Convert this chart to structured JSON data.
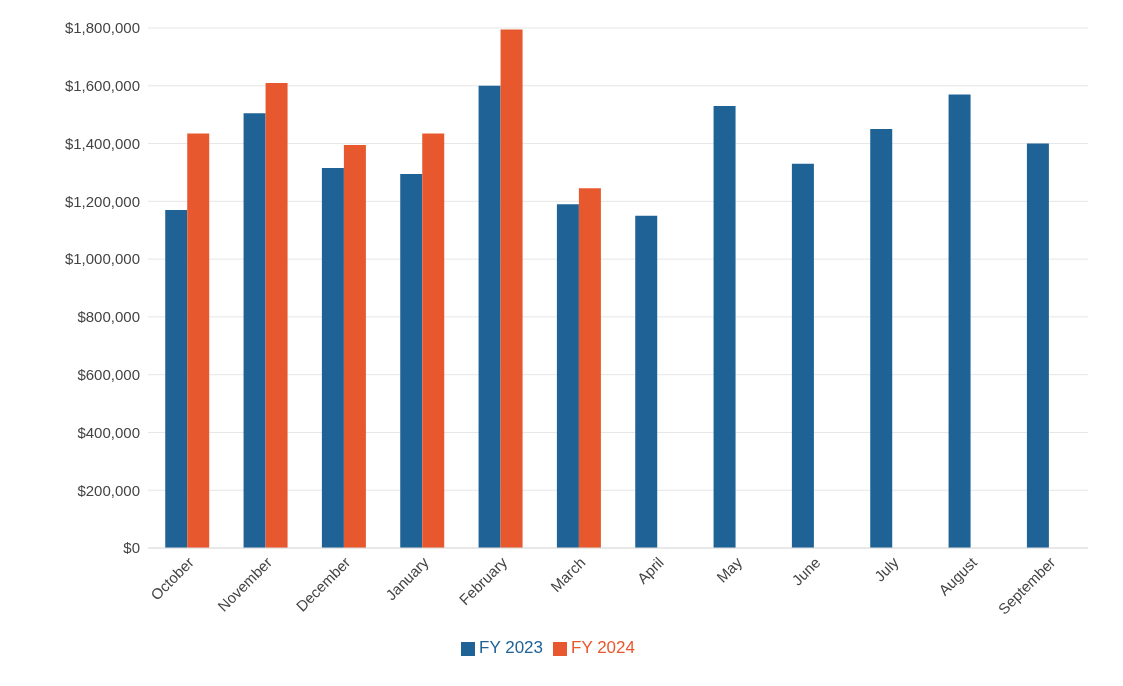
{
  "chart_data": {
    "type": "bar",
    "categories": [
      "October",
      "November",
      "December",
      "January",
      "February",
      "March",
      "April",
      "May",
      "June",
      "July",
      "August",
      "September"
    ],
    "series": [
      {
        "name": "FY 2023",
        "color": "#1f6396",
        "values": [
          1170000,
          1505000,
          1315000,
          1295000,
          1600000,
          1190000,
          1150000,
          1530000,
          1330000,
          1450000,
          1570000,
          1400000
        ]
      },
      {
        "name": "FY 2024",
        "color": "#e8582e",
        "values": [
          1435000,
          1610000,
          1395000,
          1435000,
          1795000,
          1245000,
          null,
          null,
          null,
          null,
          null,
          null
        ]
      }
    ],
    "ylim": [
      0,
      1800000
    ],
    "yticks": [
      {
        "value": 0,
        "label": "$0"
      },
      {
        "value": 200000,
        "label": "$200,000"
      },
      {
        "value": 400000,
        "label": "$400,000"
      },
      {
        "value": 600000,
        "label": "$600,000"
      },
      {
        "value": 800000,
        "label": "$800,000"
      },
      {
        "value": 1000000,
        "label": "$1,000,000"
      },
      {
        "value": 1200000,
        "label": "$1,200,000"
      },
      {
        "value": 1400000,
        "label": "$1,400,000"
      },
      {
        "value": 1600000,
        "label": "$1,600,000"
      },
      {
        "value": 1800000,
        "label": "$1,800,000"
      }
    ],
    "grid": "y",
    "legend": "bottom"
  }
}
